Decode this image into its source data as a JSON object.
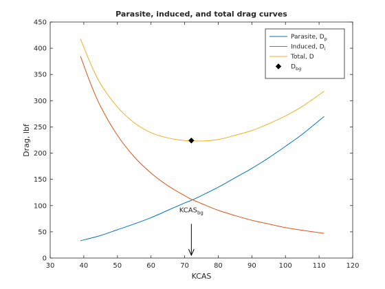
{
  "chart_data": {
    "type": "line",
    "title": "Parasite, induced, and total drag curves",
    "xlabel": "KCAS",
    "ylabel": "Drag, lbf",
    "xlim": [
      30,
      120
    ],
    "ylim": [
      0,
      450
    ],
    "xticks": [
      30,
      40,
      50,
      60,
      70,
      80,
      90,
      100,
      110,
      120
    ],
    "yticks": [
      0,
      50,
      100,
      150,
      200,
      250,
      300,
      350,
      400,
      450
    ],
    "grid": false,
    "legend_position": "top-right",
    "series": [
      {
        "name": "Parasite, D",
        "name_sub": "p",
        "color": "#0072BD",
        "marker": "none",
        "x": [
          39,
          45,
          50,
          55,
          60,
          65,
          70,
          72,
          75,
          80,
          85,
          90,
          95,
          100,
          105,
          111.5
        ],
        "y": [
          33,
          43,
          54,
          65,
          77,
          91,
          105,
          110,
          119,
          135,
          153,
          171,
          191,
          213,
          236,
          270
        ]
      },
      {
        "name": "Induced, D",
        "name_sub": "i",
        "color": "#D95319",
        "marker": "none",
        "x": [
          39,
          42,
          45,
          50,
          55,
          60,
          65,
          70,
          72,
          75,
          80,
          85,
          90,
          95,
          100,
          105,
          111.5
        ],
        "y": [
          385,
          333,
          289,
          234,
          193,
          162,
          138,
          119,
          112,
          104,
          91,
          81,
          72,
          65,
          58,
          53,
          47
        ]
      },
      {
        "name": "Total, D",
        "name_sub": "",
        "color": "#EDB120",
        "marker": "none",
        "x": [
          39,
          42,
          45,
          50,
          55,
          60,
          65,
          70,
          72,
          75,
          80,
          85,
          90,
          95,
          100,
          105,
          111.5
        ],
        "y": [
          418,
          371,
          332,
          288,
          258,
          239,
          229,
          224,
          224,
          223,
          226,
          234,
          243,
          256,
          271,
          289,
          318
        ]
      },
      {
        "name": "D",
        "name_sub": "bg",
        "color": "#000000",
        "marker": "diamond",
        "x": [
          72
        ],
        "y": [
          224
        ]
      }
    ],
    "annotations": [
      {
        "text": "KCAS",
        "text_sub": "bg",
        "arrow_x": 72,
        "arrow_from_y": 65,
        "arrow_to_y": 0
      }
    ]
  }
}
